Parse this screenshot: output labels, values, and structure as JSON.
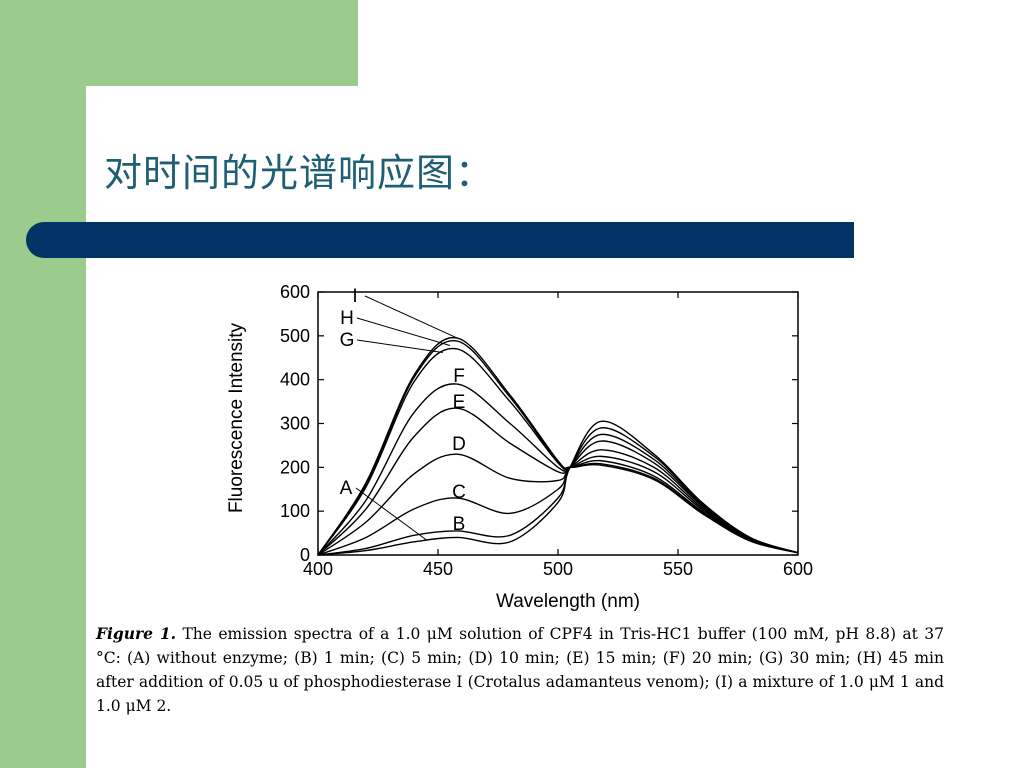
{
  "slide": {
    "title": "对时间的光谱响应图：",
    "colors": {
      "left_band": "#9bcc8e",
      "title_bar": "#003366",
      "title_text": "#1e5f74"
    }
  },
  "caption": {
    "label": "Figure 1.",
    "text": "The emission spectra of a 1.0 μM solution of CPF4 in Tris-HC1 buffer (100 mM, pH 8.8) at 37 °C: (A) without enzyme; (B) 1 min; (C) 5 min; (D) 10 min; (E) 15 min; (F) 20 min; (G) 30 min; (H) 45 min after addition of 0.05 u of phosphodiesterase I (Crotalus adamanteus venom); (I) a mixture of 1.0 μM 1 and 1.0 μM 2."
  },
  "chart_data": {
    "type": "line",
    "xlabel": "Wavelength (nm)",
    "ylabel": "Fluorescence Intensity",
    "xlim": [
      400,
      600
    ],
    "ylim": [
      0,
      600
    ],
    "xticks": [
      400,
      450,
      500,
      550,
      600
    ],
    "yticks": [
      0,
      100,
      200,
      300,
      400,
      500,
      600
    ],
    "grid": false,
    "series": [
      {
        "name": "A",
        "x": [
          400,
          420,
          440,
          458,
          480,
          500,
          505,
          518,
          540,
          560,
          580,
          600
        ],
        "y": [
          0,
          10,
          30,
          40,
          30,
          120,
          200,
          305,
          230,
          120,
          40,
          5
        ]
      },
      {
        "name": "B",
        "x": [
          400,
          420,
          440,
          458,
          480,
          500,
          505,
          518,
          540,
          560,
          580,
          600
        ],
        "y": [
          0,
          15,
          45,
          55,
          45,
          130,
          200,
          290,
          225,
          118,
          40,
          5
        ]
      },
      {
        "name": "C",
        "x": [
          400,
          420,
          440,
          458,
          480,
          500,
          505,
          518,
          540,
          560,
          580,
          600
        ],
        "y": [
          0,
          40,
          105,
          130,
          95,
          150,
          200,
          275,
          218,
          115,
          38,
          5
        ]
      },
      {
        "name": "D",
        "x": [
          400,
          420,
          440,
          458,
          480,
          500,
          505,
          518,
          540,
          560,
          580,
          600
        ],
        "y": [
          0,
          75,
          185,
          230,
          175,
          170,
          200,
          260,
          210,
          112,
          37,
          5
        ]
      },
      {
        "name": "E",
        "x": [
          400,
          420,
          440,
          458,
          480,
          500,
          505,
          518,
          540,
          560,
          580,
          600
        ],
        "y": [
          0,
          105,
          270,
          335,
          255,
          190,
          200,
          240,
          200,
          108,
          36,
          5
        ]
      },
      {
        "name": "F",
        "x": [
          400,
          420,
          440,
          458,
          480,
          500,
          505,
          518,
          540,
          560,
          580,
          600
        ],
        "y": [
          0,
          125,
          325,
          390,
          300,
          200,
          200,
          225,
          190,
          104,
          35,
          5
        ]
      },
      {
        "name": "G",
        "x": [
          400,
          420,
          440,
          458,
          480,
          500,
          505,
          518,
          540,
          560,
          580,
          600
        ],
        "y": [
          0,
          155,
          395,
          470,
          350,
          210,
          200,
          215,
          180,
          100,
          34,
          5
        ]
      },
      {
        "name": "H",
        "x": [
          400,
          420,
          440,
          458,
          480,
          500,
          505,
          518,
          540,
          560,
          580,
          600
        ],
        "y": [
          0,
          160,
          405,
          488,
          360,
          212,
          200,
          208,
          175,
          97,
          33,
          5
        ]
      },
      {
        "name": "I",
        "x": [
          400,
          420,
          440,
          458,
          480,
          500,
          505,
          518,
          540,
          560,
          580,
          600
        ],
        "y": [
          0,
          165,
          410,
          495,
          365,
          215,
          200,
          205,
          172,
          95,
          32,
          5
        ]
      }
    ]
  }
}
